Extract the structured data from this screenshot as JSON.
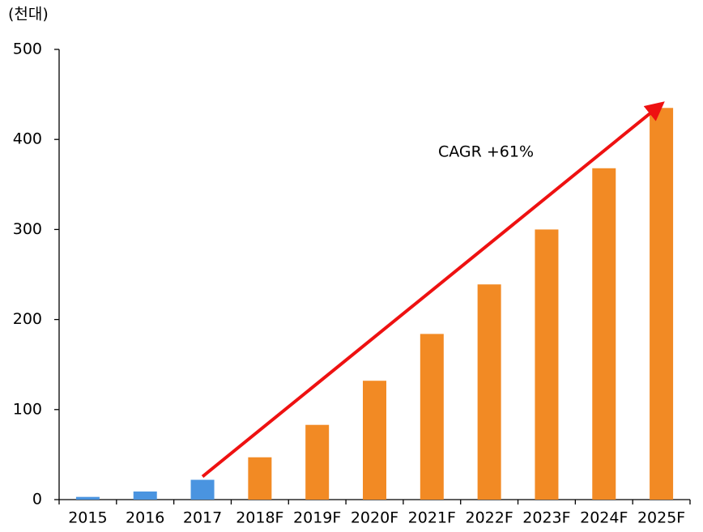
{
  "chart_data": {
    "type": "bar",
    "y_unit_label": "(천대)",
    "annotation": "CAGR +61%",
    "categories": [
      "2015",
      "2016",
      "2017",
      "2018F",
      "2019F",
      "2020F",
      "2021F",
      "2022F",
      "2023F",
      "2024F",
      "2025F"
    ],
    "values": [
      3,
      9,
      22,
      47,
      83,
      132,
      184,
      239,
      300,
      368,
      435
    ],
    "colors": [
      "#4a94e0",
      "#4a94e0",
      "#4a94e0",
      "#f28a24",
      "#f28a24",
      "#f28a24",
      "#f28a24",
      "#f28a24",
      "#f28a24",
      "#f28a24",
      "#f28a24"
    ],
    "arrow_color": "#ee1111",
    "ylim": [
      0,
      500
    ],
    "yticks": [
      0,
      100,
      200,
      300,
      400,
      500
    ],
    "grid": false
  }
}
